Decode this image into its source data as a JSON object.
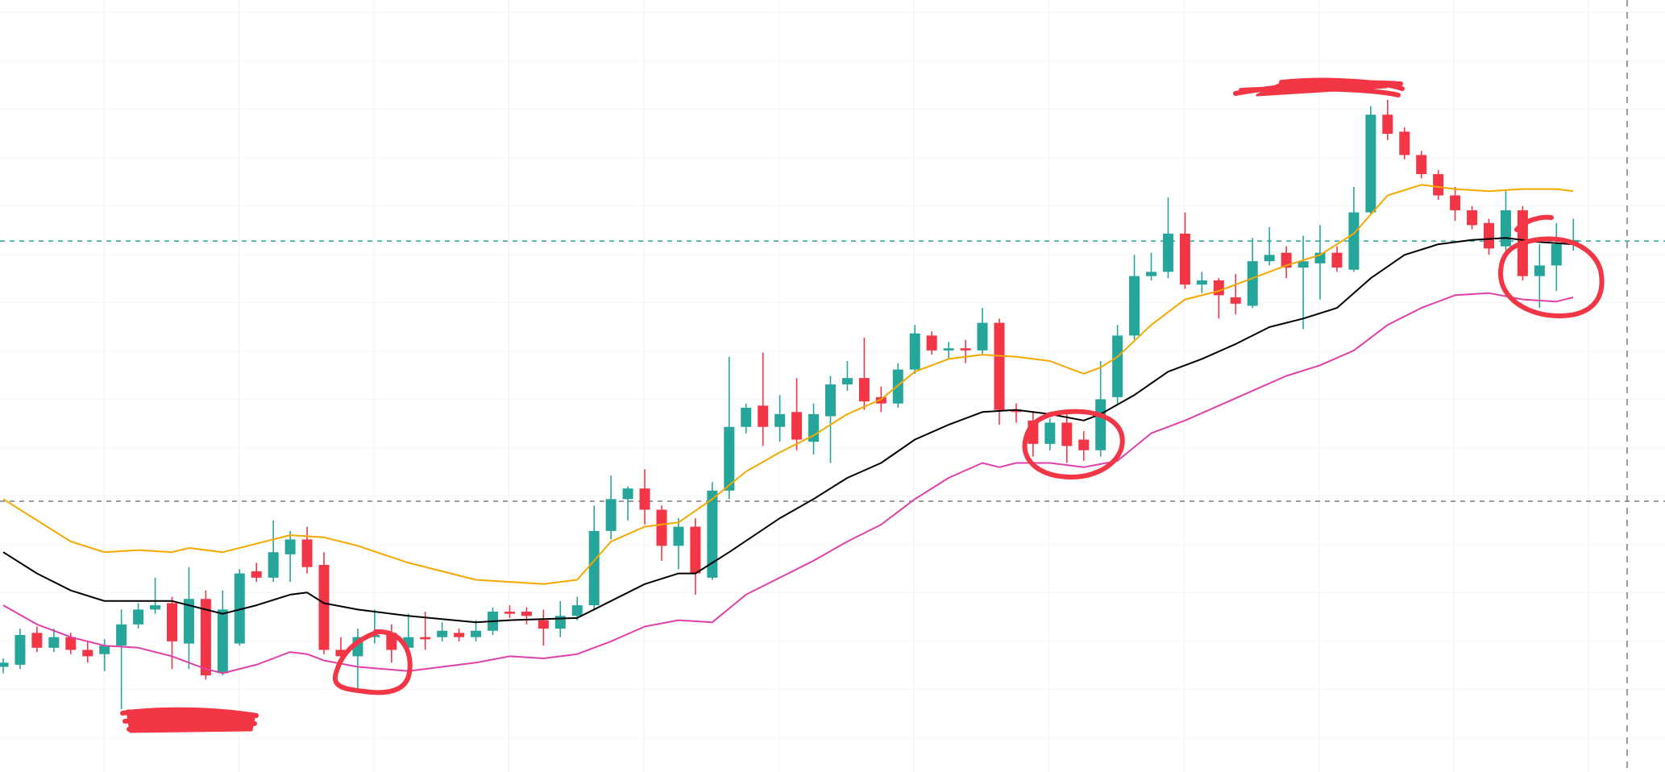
{
  "chart_data": {
    "type": "candlestick",
    "xlim": [
      -0.19,
      98.43
    ],
    "ylim": [
      0,
      727
    ],
    "up_color": "#26a69a",
    "down_color": "#f23645",
    "ohlc": [
      [
        99,
        107,
        93,
        103
      ],
      [
        101,
        135,
        97,
        129
      ],
      [
        131,
        137,
        113,
        117
      ],
      [
        117,
        135,
        113,
        127
      ],
      [
        127,
        131,
        111,
        115
      ],
      [
        115,
        123,
        103,
        109
      ],
      [
        111,
        125,
        95,
        119
      ],
      [
        119,
        153,
        59,
        139
      ],
      [
        139,
        159,
        135,
        153
      ],
      [
        153,
        183,
        149,
        157
      ],
      [
        159,
        165,
        97,
        123
      ],
      [
        121,
        193,
        97,
        163
      ],
      [
        163,
        171,
        87,
        91
      ],
      [
        93,
        171,
        91,
        153
      ],
      [
        121,
        191,
        119,
        187
      ],
      [
        189,
        197,
        179,
        183
      ],
      [
        183,
        237,
        179,
        207
      ],
      [
        205,
        227,
        179,
        219
      ],
      [
        219,
        231,
        187,
        193
      ],
      [
        195,
        207,
        111,
        115
      ],
      [
        115,
        127,
        101,
        109
      ],
      [
        109,
        135,
        77,
        127
      ],
      [
        127,
        153,
        121,
        129
      ],
      [
        131,
        139,
        103,
        115
      ],
      [
        117,
        149,
        89,
        127
      ],
      [
        127,
        151,
        115,
        125
      ],
      [
        127,
        141,
        123,
        133
      ],
      [
        131,
        135,
        123,
        127
      ],
      [
        127,
        143,
        123,
        133
      ],
      [
        133,
        155,
        129,
        151
      ],
      [
        151,
        157,
        145,
        149
      ],
      [
        151,
        155,
        139,
        147
      ],
      [
        143,
        153,
        119,
        135
      ],
      [
        135,
        161,
        127,
        147
      ],
      [
        147,
        165,
        143,
        157
      ],
      [
        157,
        251,
        153,
        227
      ],
      [
        227,
        279,
        219,
        257
      ],
      [
        257,
        269,
        237,
        267
      ],
      [
        267,
        285,
        233,
        247
      ],
      [
        247,
        251,
        199,
        213
      ],
      [
        213,
        239,
        191,
        231
      ],
      [
        231,
        239,
        167,
        187
      ],
      [
        183,
        273,
        181,
        265
      ],
      [
        265,
        391,
        257,
        325
      ],
      [
        325,
        347,
        319,
        343
      ],
      [
        345,
        395,
        307,
        325
      ],
      [
        325,
        355,
        311,
        337
      ],
      [
        339,
        371,
        303,
        313
      ],
      [
        311,
        347,
        299,
        337
      ],
      [
        335,
        373,
        291,
        365
      ],
      [
        365,
        387,
        359,
        371
      ],
      [
        371,
        409,
        341,
        349
      ],
      [
        353,
        363,
        339,
        347
      ],
      [
        347,
        385,
        343,
        379
      ],
      [
        379,
        421,
        375,
        413
      ],
      [
        411,
        415,
        393,
        397
      ],
      [
        397,
        405,
        389,
        399
      ],
      [
        399,
        407,
        385,
        397
      ],
      [
        397,
        437,
        393,
        423
      ],
      [
        423,
        427,
        327,
        341
      ],
      [
        341,
        347,
        329,
        339
      ],
      [
        331,
        339,
        297,
        309
      ],
      [
        309,
        333,
        303,
        329
      ],
      [
        329,
        337,
        291,
        307
      ],
      [
        313,
        321,
        293,
        303
      ],
      [
        303,
        387,
        297,
        351
      ],
      [
        353,
        421,
        347,
        411
      ],
      [
        411,
        487,
        407,
        467
      ],
      [
        467,
        489,
        463,
        471
      ],
      [
        471,
        541,
        465,
        507
      ],
      [
        507,
        527,
        455,
        459
      ],
      [
        459,
        471,
        451,
        463
      ],
      [
        463,
        465,
        427,
        449
      ],
      [
        447,
        469,
        431,
        441
      ],
      [
        439,
        503,
        437,
        481
      ],
      [
        481,
        513,
        477,
        487
      ],
      [
        489,
        495,
        465,
        475
      ],
      [
        475,
        505,
        417,
        481
      ],
      [
        479,
        515,
        445,
        489
      ],
      [
        489,
        495,
        471,
        475
      ],
      [
        473,
        551,
        471,
        527
      ],
      [
        527,
        627,
        525,
        619
      ],
      [
        619,
        633,
        595,
        601
      ],
      [
        603,
        607,
        577,
        581
      ],
      [
        581,
        585,
        559,
        563
      ],
      [
        563,
        567,
        539,
        543
      ],
      [
        543,
        551,
        519,
        529
      ],
      [
        529,
        533,
        511,
        515
      ],
      [
        517,
        521,
        487,
        493
      ],
      [
        495,
        547,
        491,
        529
      ],
      [
        529,
        533,
        463,
        467
      ],
      [
        467,
        497,
        437,
        477
      ],
      [
        477,
        517,
        453,
        497
      ],
      [
        497,
        521,
        491,
        501
      ]
    ],
    "lines": [
      {
        "color": "#f5a800",
        "x": [
          0,
          2,
          4,
          6,
          8,
          10,
          11,
          13,
          15,
          17,
          19,
          21,
          24,
          28,
          32,
          34,
          36,
          38,
          40,
          42,
          44,
          46,
          48,
          50,
          52,
          54,
          56,
          58,
          60,
          62,
          64,
          65,
          66,
          68,
          70,
          72,
          74,
          76,
          78,
          80,
          82,
          84,
          86,
          88,
          90,
          92,
          93
        ],
        "values": [
          257,
          237,
          217,
          207,
          209,
          207,
          211,
          207,
          215,
          223,
          221,
          213,
          197,
          181,
          177,
          181,
          217,
          231,
          235,
          257,
          283,
          301,
          317,
          337,
          351,
          377,
          389,
          393,
          391,
          387,
          375,
          381,
          391,
          421,
          445,
          453,
          465,
          477,
          487,
          507,
          543,
          553,
          549,
          547,
          549,
          549,
          547
        ]
      },
      {
        "color": "#000000",
        "x": [
          0,
          2,
          4,
          6,
          8,
          10,
          12,
          13,
          15,
          17,
          18,
          19,
          21,
          24,
          28,
          30,
          34,
          36,
          38,
          40,
          41,
          43,
          46,
          48,
          50,
          52,
          54,
          56,
          58,
          60,
          62,
          64,
          65,
          67,
          69,
          71,
          73,
          75,
          77,
          79,
          81,
          83,
          85,
          87,
          89,
          91,
          93
        ],
        "values": [
          207,
          187,
          171,
          161,
          161,
          161,
          153,
          149,
          157,
          167,
          169,
          159,
          153,
          147,
          141,
          143,
          145,
          161,
          177,
          187,
          187,
          207,
          239,
          257,
          277,
          291,
          313,
          327,
          339,
          341,
          337,
          331,
          337,
          355,
          377,
          389,
          403,
          419,
          427,
          437,
          465,
          487,
          497,
          501,
          503,
          499,
          497
        ]
      },
      {
        "color": "#e040a8",
        "x": [
          0,
          2,
          4,
          6,
          8,
          10,
          12,
          13,
          15,
          16,
          17,
          18,
          19,
          21,
          24,
          26,
          28,
          30,
          32,
          34,
          36,
          38,
          40,
          42,
          44,
          46,
          48,
          50,
          52,
          54,
          56,
          58,
          59,
          60,
          62,
          64,
          66,
          68,
          70,
          72,
          74,
          76,
          78,
          80,
          82,
          84,
          86,
          88,
          90,
          92,
          93
        ],
        "values": [
          157,
          139,
          127,
          119,
          117,
          109,
          97,
          93,
          101,
          107,
          113,
          111,
          105,
          99,
          95,
          99,
          103,
          109,
          107,
          111,
          123,
          137,
          143,
          141,
          167,
          183,
          199,
          217,
          233,
          257,
          277,
          291,
          287,
          291,
          291,
          287,
          293,
          319,
          331,
          345,
          359,
          373,
          383,
          397,
          421,
          437,
          449,
          451,
          445,
          443,
          447
        ]
      }
    ],
    "price_lines": [
      {
        "value": 500,
        "color": "#26a69a"
      },
      {
        "value": 255,
        "color": "#787b86"
      }
    ]
  }
}
